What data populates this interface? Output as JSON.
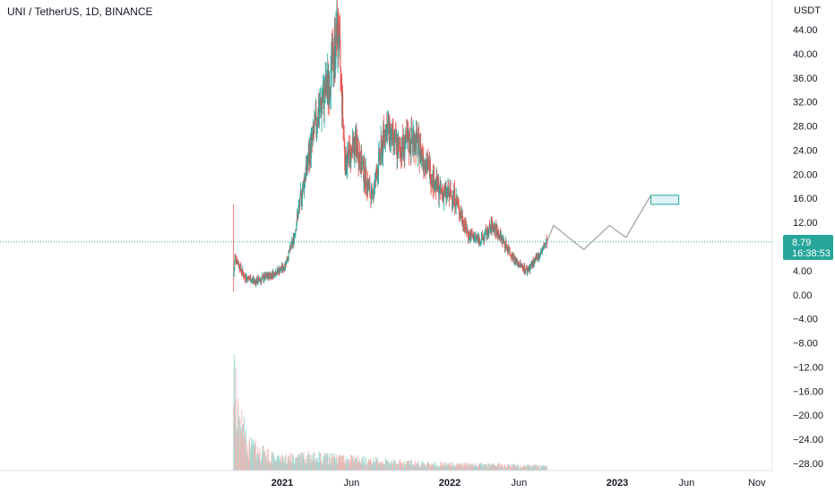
{
  "header": {
    "symbol_title": "UNI / TetherUS, 1D, BINANCE"
  },
  "price_axis": {
    "unit_label": "USDT",
    "ticks": [
      "44.00",
      "40.00",
      "36.00",
      "32.00",
      "28.00",
      "24.00",
      "20.00",
      "16.00",
      "12.00",
      "8.00",
      "4.00",
      "0.00",
      "−4.00",
      "−8.00",
      "−12.00",
      "−16.00",
      "−20.00",
      "−24.00",
      "−28.00"
    ]
  },
  "last_price": {
    "value": "8.79",
    "countdown": "16:38:53"
  },
  "colors": {
    "up": "#26a69a",
    "down": "#ef5350",
    "volume_up": "#9fd9d2",
    "volume_down": "#f5b5b3",
    "projection": "#a7a7a7",
    "target_box_fill": "#e0f3f6",
    "target_box_border": "#26a69a",
    "badge": "#26a69a"
  },
  "chart_data": {
    "type": "candlestick",
    "x_axis_ticks": [
      "2021",
      "Jun",
      "2022",
      "Jun",
      "2023",
      "Jun",
      "Nov"
    ],
    "y_range": [
      -30,
      46
    ],
    "price_path": [
      {
        "date": "2020-09-17",
        "price": 3.0,
        "min": 0.5,
        "max": 15.0
      },
      {
        "date": "2020-09-20",
        "price": 6.5
      },
      {
        "date": "2020-10-10",
        "price": 3.0
      },
      {
        "date": "2020-11-05",
        "price": 2.2
      },
      {
        "date": "2020-12-10",
        "price": 3.4
      },
      {
        "date": "2021-01-05",
        "price": 4.5
      },
      {
        "date": "2021-01-25",
        "price": 9.0
      },
      {
        "date": "2021-02-20",
        "price": 20.0
      },
      {
        "date": "2021-03-20",
        "price": 30.0
      },
      {
        "date": "2021-04-15",
        "price": 36.0
      },
      {
        "date": "2021-05-03",
        "price": 44.5
      },
      {
        "date": "2021-05-18",
        "price": 22.0
      },
      {
        "date": "2021-06-10",
        "price": 25.0
      },
      {
        "date": "2021-07-15",
        "price": 16.0
      },
      {
        "date": "2021-08-15",
        "price": 28.0
      },
      {
        "date": "2021-09-10",
        "price": 24.0
      },
      {
        "date": "2021-10-15",
        "price": 26.0
      },
      {
        "date": "2021-11-10",
        "price": 22.0
      },
      {
        "date": "2021-12-10",
        "price": 17.0
      },
      {
        "date": "2022-01-10",
        "price": 16.5
      },
      {
        "date": "2022-02-10",
        "price": 10.0
      },
      {
        "date": "2022-03-10",
        "price": 9.0
      },
      {
        "date": "2022-04-05",
        "price": 11.5
      },
      {
        "date": "2022-05-05",
        "price": 8.0
      },
      {
        "date": "2022-05-25",
        "price": 5.5
      },
      {
        "date": "2022-06-18",
        "price": 4.0
      },
      {
        "date": "2022-07-10",
        "price": 6.0
      },
      {
        "date": "2022-08-01",
        "price": 8.79
      }
    ],
    "projection_path": [
      {
        "date": "2022-08-15",
        "price": 11.5
      },
      {
        "date": "2022-10-20",
        "price": 7.5
      },
      {
        "date": "2022-12-15",
        "price": 11.5
      },
      {
        "date": "2023-01-20",
        "price": 9.5
      },
      {
        "date": "2023-03-15",
        "price": 16.5
      }
    ],
    "target_zone": {
      "date_start": "2023-03-15",
      "date_end": "2023-05-15",
      "price_low": 15.0,
      "price_high": 16.5
    },
    "volume_path": [
      {
        "date": "2020-09-17",
        "level": 1.0
      },
      {
        "date": "2020-09-25",
        "level": 0.55
      },
      {
        "date": "2020-10-20",
        "level": 0.25
      },
      {
        "date": "2020-12-15",
        "level": 0.12
      },
      {
        "date": "2021-02-20",
        "level": 0.14
      },
      {
        "date": "2021-05-15",
        "level": 0.12
      },
      {
        "date": "2021-09-01",
        "level": 0.08
      },
      {
        "date": "2022-01-01",
        "level": 0.06
      },
      {
        "date": "2022-05-20",
        "level": 0.05
      },
      {
        "date": "2022-08-01",
        "level": 0.04
      }
    ]
  }
}
